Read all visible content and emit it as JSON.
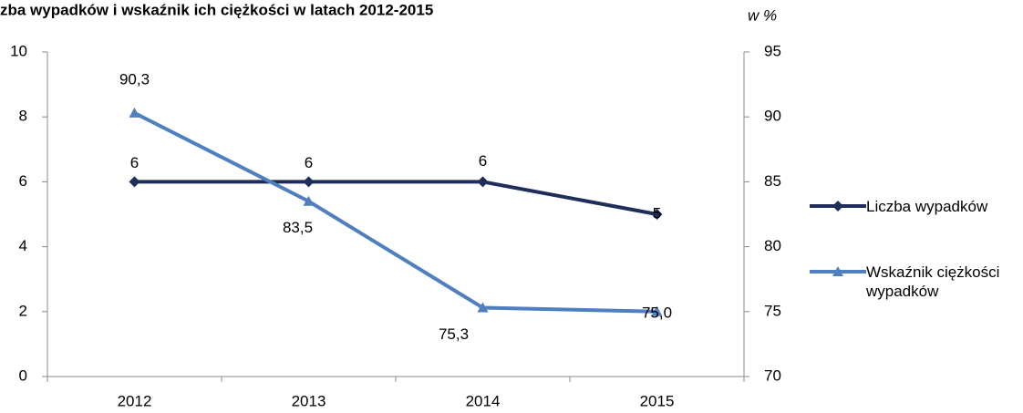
{
  "chart_data": {
    "type": "line",
    "title": "zba wypadków i wskaźnik ich ciężkości w latach 2012-2015",
    "y2_label": "w %",
    "categories": [
      "2012",
      "2013",
      "2014",
      "2015"
    ],
    "series": [
      {
        "name": "Liczba wypadków",
        "color": "#1f2d5a",
        "marker": "diamond",
        "values": [
          6,
          6,
          6,
          5
        ]
      },
      {
        "name": "Wskaźnik ciężkości wypadków",
        "color": "#4f7fbf",
        "marker": "triangle",
        "axis": "y2",
        "values": [
          90.3,
          83.5,
          75.3,
          75.0
        ],
        "value_labels": [
          "90,3",
          "83,5",
          "75,3",
          "75,0"
        ]
      }
    ],
    "ylim": [
      0,
      10
    ],
    "yticks": [
      0,
      2,
      4,
      6,
      8,
      10
    ],
    "y2lim": [
      70,
      95
    ],
    "y2ticks": [
      70,
      75,
      80,
      85,
      90,
      95
    ],
    "legend": "right"
  }
}
